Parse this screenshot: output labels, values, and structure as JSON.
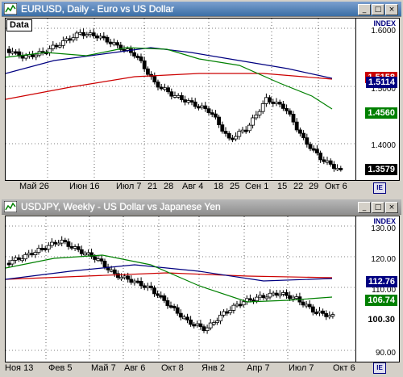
{
  "charts": [
    {
      "window_title": "EURUSD, Daily - Euro vs US Dollar",
      "data_label": "Data",
      "scale_labels": [
        "1.6000",
        "1.5000",
        "1.4000"
      ],
      "price_tags": [
        {
          "label": "1.5158",
          "color": "#cc0000"
        },
        {
          "label": "1.5114",
          "color": "#000080"
        },
        {
          "label": "1.4560",
          "color": "#008000"
        },
        {
          "label": "1.3579",
          "color": "#000000"
        }
      ],
      "date_labels": [
        "Май 26",
        "Июн 16",
        "Июл 7",
        "21",
        "28",
        "Авг 4",
        "18",
        "25",
        "Сен 1",
        "15",
        "22",
        "29",
        "Окт 6"
      ],
      "index_label": "INDEX"
    },
    {
      "window_title": "USDJPY, Weekly - US Dollar vs Japanese Yen",
      "data_label": "",
      "scale_labels": [
        "130.00",
        "120.00",
        "110.00",
        "90.00"
      ],
      "price_tags": [
        {
          "label": "112.76",
          "color": "#000080"
        },
        {
          "label": "106.74",
          "color": "#008000"
        },
        {
          "label": "100.30",
          "color": "#000000"
        }
      ],
      "date_labels": [
        "Ноя 13",
        "Фев 5",
        "Май 7",
        "Авг 6",
        "Окт 8",
        "Янв 2",
        "Апр 7",
        "Июл 7",
        "Окт 6"
      ],
      "index_label": "INDEX"
    }
  ],
  "colors": {
    "bg": "#d4d0c8",
    "plot": "#ffffff",
    "candle": "#000000",
    "ma_fast": "#008000",
    "ma_mid": "#000080",
    "ma_slow": "#cc0000"
  },
  "icons": {
    "app": "chart-window-icon",
    "minimize": "minimize-icon",
    "maximize": "maximize-icon",
    "close": "close-icon"
  }
}
